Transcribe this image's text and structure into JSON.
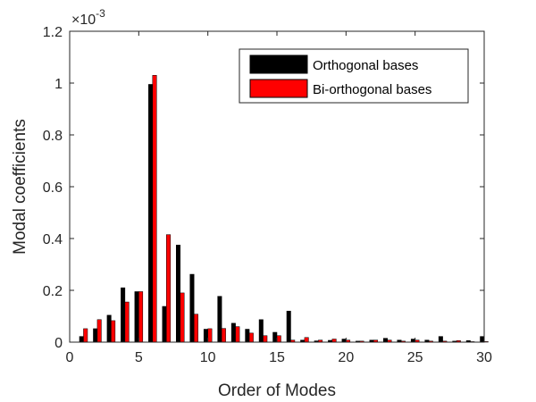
{
  "chart_data": {
    "type": "bar",
    "xlabel": "Order of Modes",
    "ylabel": "Modal coefficients",
    "y_exponent_label": {
      "base": "×10",
      "power": "-3"
    },
    "xlim": [
      0,
      30
    ],
    "ylim": [
      0,
      0.0012
    ],
    "x_ticks": [
      0,
      5,
      10,
      15,
      20,
      25,
      30
    ],
    "y_ticks": [
      0,
      0.0002,
      0.0004,
      0.0006,
      0.0008,
      0.001,
      0.0012
    ],
    "y_tick_labels": [
      "0",
      "0.2",
      "0.4",
      "0.6",
      "0.8",
      "1",
      "1.2"
    ],
    "legend_position": "top-right",
    "grid": false,
    "x": [
      1,
      2,
      3,
      4,
      5,
      6,
      7,
      8,
      9,
      10,
      11,
      12,
      13,
      14,
      15,
      16,
      17,
      18,
      19,
      20,
      21,
      22,
      23,
      24,
      25,
      26,
      27,
      28,
      29,
      30
    ],
    "series": [
      {
        "name": "Orthogonal bases",
        "color": "#000000",
        "values": [
          2.2e-05,
          5.2e-05,
          0.000104,
          0.00021,
          0.000195,
          0.000995,
          0.000138,
          0.000375,
          0.000262,
          5e-05,
          0.000177,
          7.3e-05,
          5e-05,
          8.7e-05,
          3.8e-05,
          0.00012,
          8e-06,
          5e-06,
          7e-06,
          1.2e-05,
          4e-06,
          8e-06,
          1.5e-05,
          8e-06,
          1.2e-05,
          8e-06,
          2.2e-05,
          4e-06,
          6e-06,
          2.2e-05
        ]
      },
      {
        "name": "Bi-orthogonal bases",
        "color": "#ff0000",
        "values": [
          5.2e-05,
          8.7e-05,
          8.3e-05,
          0.000155,
          0.000195,
          0.00103,
          0.000415,
          0.00019,
          0.000108,
          5.2e-05,
          5.3e-05,
          6e-05,
          3.5e-05,
          2.5e-05,
          2.5e-05,
          8e-06,
          1.8e-05,
          8e-06,
          1.2e-05,
          8e-06,
          4e-06,
          8e-06,
          8e-06,
          4e-06,
          8e-06,
          4e-06,
          4e-06,
          6e-06,
          2e-06,
          2e-06
        ]
      }
    ]
  }
}
